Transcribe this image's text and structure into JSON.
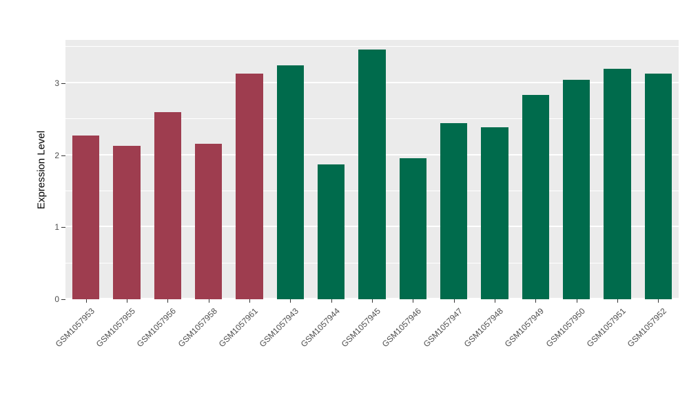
{
  "chart_data": {
    "type": "bar",
    "title": "",
    "xlabel": "",
    "ylabel": "Expression Level",
    "categories": [
      "GSM1057953",
      "GSM1057955",
      "GSM1057956",
      "GSM1057958",
      "GSM1057961",
      "GSM1057943",
      "GSM1057944",
      "GSM1057945",
      "GSM1057946",
      "GSM1057947",
      "GSM1057948",
      "GSM1057949",
      "GSM1057950",
      "GSM1057951",
      "GSM1057952"
    ],
    "values": [
      2.27,
      2.13,
      2.6,
      2.16,
      3.13,
      3.25,
      1.87,
      3.47,
      1.96,
      2.44,
      2.39,
      2.84,
      3.05,
      3.2,
      3.13
    ],
    "bar_colors": [
      "#9E3D4F",
      "#9E3D4F",
      "#9E3D4F",
      "#9E3D4F",
      "#9E3D4F",
      "#006B4C",
      "#006B4C",
      "#006B4C",
      "#006B4C",
      "#006B4C",
      "#006B4C",
      "#006B4C",
      "#006B4C",
      "#006B4C",
      "#006B4C"
    ],
    "ylim": [
      0,
      3.6
    ],
    "yticks": [
      0,
      1,
      2,
      3
    ],
    "yticks_minor": [
      0.5,
      1.5,
      2.5,
      3.5
    ],
    "grid": true,
    "legend": "none",
    "panel_background": "#EBEBEB",
    "gridline_color": "#FFFFFF",
    "tick_label_color": "#4D4D4D",
    "axis_title_color": "#000000"
  }
}
